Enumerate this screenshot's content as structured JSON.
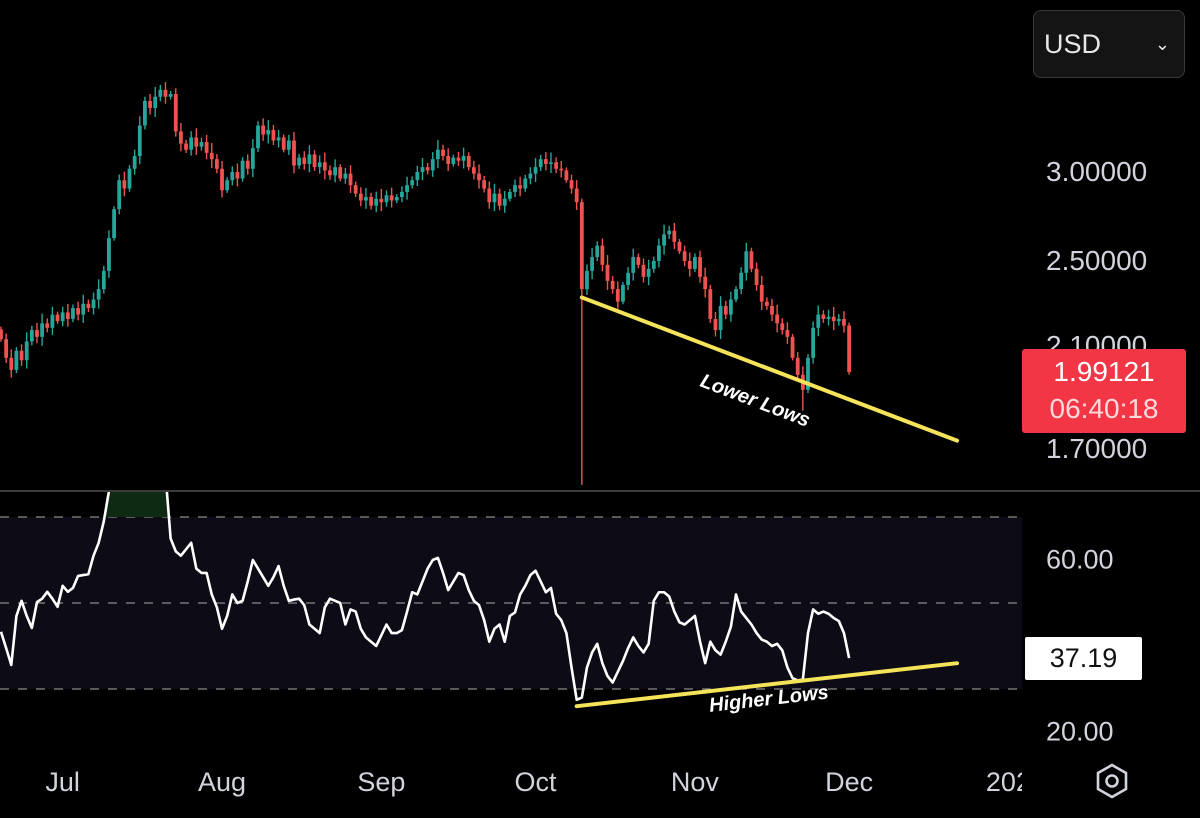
{
  "currency_selector": {
    "value": "USD",
    "icon": "chevron-down-icon"
  },
  "settings_icon": "hexagon-gear-icon",
  "last_price": {
    "value": "1.99121",
    "countdown": "06:40:18",
    "color": "#f23645"
  },
  "rsi_current": "37.19",
  "colors": {
    "up": "#26a69a",
    "down": "#ef5350",
    "trendline": "#f5e35a",
    "rsi_line": "#ffffff",
    "rsi_band": "#0c0b16",
    "overbought_fill": "#0f2a12"
  },
  "chart_data": [
    {
      "type": "candlestick",
      "scale": "log",
      "y_ticks": [
        "3.00000",
        "2.50000",
        "2.10000",
        "1.70000"
      ],
      "y_tick_values": [
        3.0,
        2.5,
        2.1,
        1.7
      ],
      "x_ticks": [
        {
          "label": "Jul",
          "index": 12
        },
        {
          "label": "Aug",
          "index": 43
        },
        {
          "label": "Sep",
          "index": 74
        },
        {
          "label": "Oct",
          "index": 104
        },
        {
          "label": "Nov",
          "index": 135
        },
        {
          "label": "Dec",
          "index": 165
        },
        {
          "label": "202",
          "index": 196
        }
      ],
      "close": [
        2.13,
        2.05,
        2.0,
        2.08,
        2.04,
        2.12,
        2.17,
        2.14,
        2.2,
        2.18,
        2.24,
        2.21,
        2.25,
        2.22,
        2.27,
        2.24,
        2.29,
        2.27,
        2.31,
        2.36,
        2.45,
        2.62,
        2.78,
        2.95,
        2.9,
        3.02,
        3.1,
        3.3,
        3.47,
        3.42,
        3.5,
        3.55,
        3.5,
        3.52,
        3.26,
        3.18,
        3.14,
        3.22,
        3.16,
        3.19,
        3.12,
        3.08,
        3.02,
        2.89,
        2.95,
        3.0,
        2.96,
        3.07,
        3.02,
        3.15,
        3.3,
        3.24,
        3.27,
        3.2,
        3.22,
        3.14,
        3.2,
        3.04,
        3.09,
        3.05,
        3.11,
        3.03,
        3.06,
        3.01,
        2.98,
        3.03,
        2.96,
        2.99,
        2.92,
        2.87,
        2.83,
        2.85,
        2.8,
        2.84,
        2.82,
        2.86,
        2.83,
        2.85,
        2.88,
        2.92,
        2.95,
        3.0,
        3.03,
        3.01,
        3.08,
        3.14,
        3.1,
        3.05,
        3.09,
        3.07,
        3.1,
        3.03,
        2.99,
        2.95,
        2.9,
        2.82,
        2.87,
        2.8,
        2.84,
        2.88,
        2.92,
        2.9,
        2.96,
        2.99,
        3.03,
        3.08,
        3.05,
        3.06,
        3.02,
        3.01,
        2.95,
        2.9,
        2.82,
        2.36,
        2.45,
        2.52,
        2.58,
        2.48,
        2.4,
        2.36,
        2.3,
        2.38,
        2.44,
        2.52,
        2.48,
        2.42,
        2.46,
        2.5,
        2.58,
        2.64,
        2.66,
        2.6,
        2.55,
        2.5,
        2.46,
        2.52,
        2.42,
        2.36,
        2.22,
        2.17,
        2.28,
        2.24,
        2.31,
        2.36,
        2.44,
        2.55,
        2.46,
        2.38,
        2.3,
        2.28,
        2.24,
        2.2,
        2.17,
        2.14,
        2.05,
        1.98,
        1.92,
        2.05,
        2.18,
        2.24,
        2.22,
        2.23,
        2.21,
        2.22,
        2.19,
        1.99121
      ],
      "low_wicks": {
        "113": 1.58,
        "156": 1.84
      },
      "annotations": [
        {
          "label": "Lower Lows",
          "from": {
            "index": 113,
            "price": 2.32
          },
          "to": {
            "index": 186,
            "price": 1.73
          }
        }
      ]
    },
    {
      "type": "line",
      "y_ticks": [
        "60.00",
        "20.00"
      ],
      "y_tick_values": [
        60,
        20
      ],
      "levels": [
        70,
        50,
        30
      ],
      "values": [
        43.3,
        39.5,
        35.6,
        47,
        50.5,
        47,
        44.2,
        50.2,
        51,
        52.6,
        51,
        49.1,
        54,
        52.6,
        53.5,
        56.3,
        56.5,
        56.7,
        61,
        64,
        69,
        76,
        80,
        83,
        81,
        84,
        85,
        87,
        89,
        87,
        88,
        88,
        80,
        65,
        62,
        61,
        62.5,
        64,
        58,
        57,
        57,
        52,
        49,
        44,
        47,
        52,
        50,
        50.5,
        55,
        60,
        58,
        56,
        54,
        56,
        58.6,
        54,
        50.5,
        50.8,
        51,
        49.5,
        45,
        44,
        43,
        49,
        51,
        50.5,
        50,
        45,
        48.5,
        48,
        44,
        42,
        41,
        40,
        42.5,
        45,
        43,
        43,
        43.7,
        48,
        52.5,
        52,
        55,
        58,
        60,
        60.5,
        57,
        53,
        55,
        57,
        56.5,
        53,
        50.5,
        49.5,
        46,
        41,
        44,
        45,
        41,
        47,
        47.8,
        52,
        54,
        56.5,
        57.5,
        55,
        52.5,
        53.5,
        47.5,
        46,
        43,
        35,
        27.5,
        28,
        35,
        38.5,
        40.5,
        36,
        33,
        31.5,
        34,
        36.5,
        39.5,
        42,
        40,
        38.5,
        40.5,
        50.5,
        52.5,
        52.5,
        51.5,
        48,
        45.5,
        45,
        46,
        47,
        41,
        36,
        41,
        39,
        38,
        41,
        44.5,
        52,
        48,
        46.5,
        45,
        43,
        41.5,
        41,
        40,
        40.5,
        39,
        35,
        32.5,
        32,
        32.2,
        43,
        48.5,
        47.5,
        48,
        47.5,
        46.5,
        45.8,
        43,
        37.19
      ],
      "annotations": [
        {
          "label": "Higher Lows",
          "from": {
            "index": 112,
            "value": 26.0
          },
          "to": {
            "index": 186,
            "value": 36.0
          }
        }
      ]
    }
  ]
}
